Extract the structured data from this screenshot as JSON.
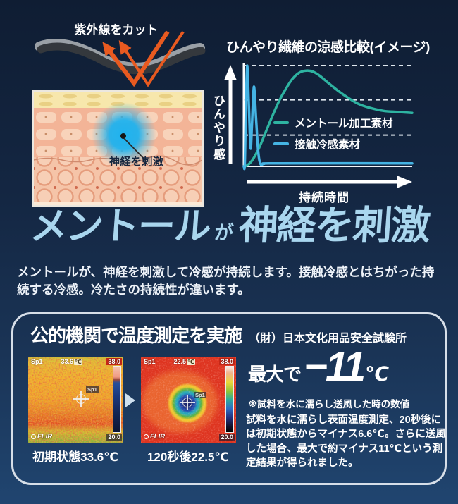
{
  "page": {
    "bg_top": "#0f1d33",
    "bg_bottom": "#204570"
  },
  "uv_diagram": {
    "title": "紫外線をカット",
    "nerve_label": "神経を刺激",
    "arrow_color": "#e85a20",
    "glow_color": "#1fb2ee"
  },
  "chart_data": {
    "type": "line",
    "title": "ひんやり繊維の涼感比較(イメージ)",
    "xlabel": "持続時間",
    "ylabel": "ひんやり感",
    "x_range": [
      0,
      100
    ],
    "y_range": [
      0,
      100
    ],
    "grid": "3 horizontal white dashed reference lines",
    "reference_levels": [
      100,
      66,
      31
    ],
    "legend_position": "inside-middle",
    "series": [
      {
        "name": "メントール加工素材",
        "color": "#2eb3a1",
        "x": [
          0,
          2,
          5,
          9,
          13,
          17,
          21,
          25,
          29,
          33,
          37,
          41,
          45,
          50,
          56,
          62,
          68,
          75,
          83,
          91,
          100
        ],
        "values": [
          0,
          1,
          6,
          18,
          34,
          50,
          65,
          77,
          87,
          93,
          95,
          94,
          90,
          83,
          75,
          68,
          62,
          58,
          55,
          54,
          53
        ]
      },
      {
        "name": "接触冷感素材",
        "color": "#45b4e4",
        "x": [
          0,
          0.6,
          1.2,
          2,
          3,
          4,
          4.8,
          6,
          7.2,
          8.6,
          10,
          12,
          20,
          100
        ],
        "values": [
          0,
          2,
          55,
          100,
          60,
          18,
          40,
          79,
          50,
          14,
          2,
          2.5,
          3,
          3
        ]
      }
    ]
  },
  "headline": {
    "em": "メントール",
    "particle": "が",
    "rest": "神経を刺激",
    "color": "#a9d6ee"
  },
  "lead": "メントールが、神経を刺激して冷感が持続します。接触冷感とはちがった持続する冷感。冷たさの持続性が違います。",
  "test": {
    "title": "公的機関で温度測定を実施",
    "org": "（財）日本文化用品安全試験所",
    "thermals": [
      {
        "spot": "Sp1",
        "temp": "33.6",
        "unit": "℃",
        "scale_max": "38.0",
        "scale_min": "20.0",
        "brand": "FLIR",
        "caption": "初期状態33.6℃"
      },
      {
        "spot": "Sp1",
        "temp": "22.5",
        "unit": "℃",
        "scale_max": "38.0",
        "scale_min": "20.0",
        "brand": "FLIR",
        "caption": "120秒後22.5℃"
      }
    ],
    "result": {
      "prefix": "最大で",
      "value": "−11",
      "unit": "℃",
      "note": "※試料を水に濡らし送風した時の数値"
    },
    "body": "試料を水に濡らし表面温度測定、20秒後には初期状態からマイナス6.6℃。さらに送風した場合、最大で約マイナス11℃という測定結果が得られました。"
  }
}
